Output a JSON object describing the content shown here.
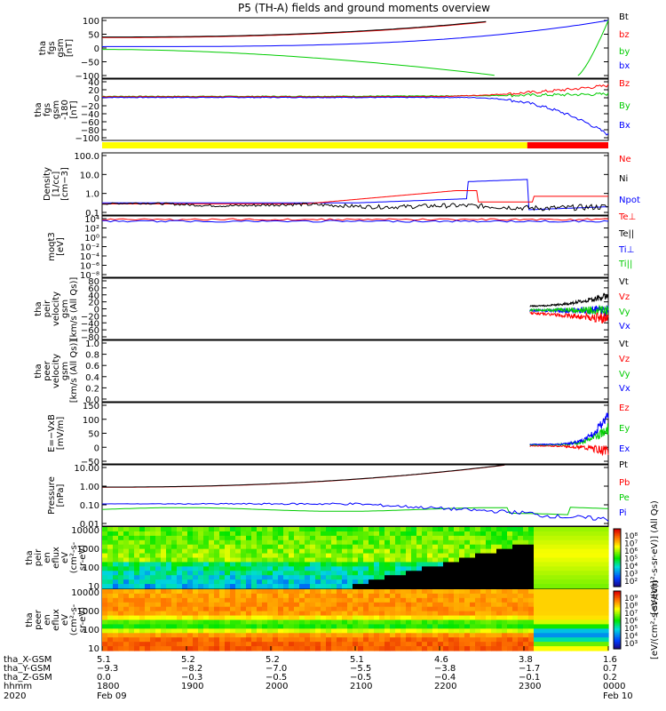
{
  "title": "P5 (TH-A) fields and ground moments overview",
  "colors": {
    "black": "#000000",
    "red": "#ff0000",
    "green": "#00cc00",
    "blue": "#0000ff",
    "bright_green": "#00ff00",
    "yellow": "#ffff00"
  },
  "chart_data": [
    {
      "panel": "fgs_gsm",
      "type": "line",
      "ylabel": [
        "tha",
        "fgs",
        "gsm",
        "[nT]"
      ],
      "yticks": [
        "100",
        "50",
        "0",
        "−50",
        "−100"
      ],
      "ylim": [
        -100,
        100
      ],
      "series": [
        {
          "name": "Bt",
          "color": "black"
        },
        {
          "name": "bz",
          "color": "red"
        },
        {
          "name": "by",
          "color": "green"
        },
        {
          "name": "bx",
          "color": "blue"
        }
      ]
    },
    {
      "panel": "fgs_gsm_clipped",
      "type": "line",
      "ylabel": [
        "tha",
        "fgs",
        "gsm",
        "-180",
        "[nT]"
      ],
      "yticks": [
        "40",
        "20",
        "0",
        "−20",
        "−40",
        "−60",
        "−80",
        "−100"
      ],
      "ylim": [
        -110,
        40
      ],
      "series": [
        {
          "name": "Bz",
          "color": "red"
        },
        {
          "name": "By",
          "color": "green"
        },
        {
          "name": "Bx",
          "color": "blue"
        }
      ]
    },
    {
      "panel": "density",
      "type": "line",
      "ylabel": [
        "Density",
        "[1/cc]",
        "[cm−3]"
      ],
      "yticks": [
        "100.0",
        "10.0",
        "1.0",
        "0.1"
      ],
      "yscale": "log",
      "series": [
        {
          "name": "Ne",
          "color": "red"
        },
        {
          "name": "Ni",
          "color": "black"
        },
        {
          "name": "Npot",
          "color": "blue"
        }
      ]
    },
    {
      "panel": "temperature",
      "type": "line",
      "ylabel": [
        "moqt3",
        "[eV]"
      ],
      "yticks": [
        "10⁴",
        "10²",
        "10⁰",
        "10⁻²",
        "10⁻⁴",
        "10⁻⁶",
        "10⁻⁸"
      ],
      "yscale": "log",
      "series": [
        {
          "name": "Te⊥",
          "color": "red"
        },
        {
          "name": "Te||",
          "color": "black"
        },
        {
          "name": "Ti⊥",
          "color": "blue"
        },
        {
          "name": "Ti||",
          "color": "green"
        }
      ]
    },
    {
      "panel": "peir_velocity",
      "type": "line",
      "ylabel": [
        "tha",
        "peir",
        "velocity",
        "gsm",
        "[km/s (All Qs)]"
      ],
      "yticks": [
        "80",
        "60",
        "40",
        "20",
        "0",
        "−20",
        "−40",
        "−60",
        "−80"
      ],
      "ylim": [
        -80,
        80
      ],
      "series": [
        {
          "name": "Vt",
          "color": "black"
        },
        {
          "name": "Vz",
          "color": "red"
        },
        {
          "name": "Vy",
          "color": "green"
        },
        {
          "name": "Vx",
          "color": "blue"
        }
      ]
    },
    {
      "panel": "peer_velocity",
      "type": "line",
      "ylabel": [
        "tha",
        "peer",
        "velocity",
        "gsm",
        "[km/s (All Qs)]"
      ],
      "yticks": [
        "1.0",
        "0.8",
        "0.6",
        "0.4",
        "0.2",
        "0.0"
      ],
      "ylim": [
        0,
        1
      ],
      "series": [
        {
          "name": "Vt",
          "color": "black"
        },
        {
          "name": "Vz",
          "color": "red"
        },
        {
          "name": "Vy",
          "color": "green"
        },
        {
          "name": "Vx",
          "color": "blue"
        }
      ]
    },
    {
      "panel": "efield",
      "type": "line",
      "ylabel": [
        "E=−VxB",
        "[mV/m]"
      ],
      "yticks": [
        "150",
        "100",
        "50",
        "0",
        "−50"
      ],
      "ylim": [
        -60,
        150
      ],
      "series": [
        {
          "name": "Ez",
          "color": "red"
        },
        {
          "name": "Ey",
          "color": "green"
        },
        {
          "name": "Ex",
          "color": "blue"
        }
      ]
    },
    {
      "panel": "pressure",
      "type": "line",
      "ylabel": [
        "Pressure",
        "[nPa]"
      ],
      "yticks": [
        "10.00",
        "1.00",
        "0.10",
        "0.01"
      ],
      "yscale": "log",
      "series": [
        {
          "name": "Pt",
          "color": "black"
        },
        {
          "name": "Pb",
          "color": "red"
        },
        {
          "name": "Pe",
          "color": "green"
        },
        {
          "name": "Pi",
          "color": "blue"
        }
      ]
    },
    {
      "panel": "peir_spectrogram",
      "type": "heatmap",
      "ylabel": [
        "tha",
        "peir",
        "en",
        "eflux",
        "eV",
        "(cm²-s-",
        "sr-eV)"
      ],
      "yticks": [
        "10000",
        "1000",
        "100",
        "10"
      ],
      "colorbar_label": "[eV/(cm²-s-sr-eV)] (All Qs)",
      "colorbar_ticks": [
        "10⁸",
        "10⁷",
        "10⁶",
        "10⁵",
        "10⁴",
        "10³",
        "10²"
      ]
    },
    {
      "panel": "peer_spectrogram",
      "type": "heatmap",
      "ylabel": [
        "tha",
        "peer",
        "en",
        "eflux",
        "eV",
        "(cm²-s-",
        "sr-eV)"
      ],
      "yticks": [
        "10000",
        "1000",
        "100",
        "10"
      ],
      "colorbar_label": "[eV/(cm²-s-sr-eV)]",
      "colorbar_ticks": [
        "10⁹",
        "10⁸",
        "10⁷",
        "10⁶",
        "10⁵",
        "10⁴",
        "10³"
      ]
    }
  ],
  "xaxis": {
    "row_labels": [
      "tha_X-GSM",
      "tha_Y-GSM",
      "tha_Z-GSM",
      "hhmm",
      "2020"
    ],
    "ticks": [
      {
        "x": "5.1",
        "y": "−9.3",
        "z": "0.0",
        "hhmm": "1800",
        "date": "Feb 09"
      },
      {
        "x": "5.2",
        "y": "−8.2",
        "z": "−0.3",
        "hhmm": "1900",
        "date": ""
      },
      {
        "x": "5.2",
        "y": "−7.0",
        "z": "−0.5",
        "hhmm": "2000",
        "date": ""
      },
      {
        "x": "5.1",
        "y": "−5.5",
        "z": "−0.5",
        "hhmm": "2100",
        "date": ""
      },
      {
        "x": "4.6",
        "y": "−3.8",
        "z": "−0.4",
        "hhmm": "2200",
        "date": ""
      },
      {
        "x": "3.8",
        "y": "−1.7",
        "z": "−0.1",
        "hhmm": "2300",
        "date": ""
      },
      {
        "x": "1.6",
        "y": "0.7",
        "z": "0.2",
        "hhmm": "0000",
        "date": "Feb 10"
      }
    ]
  }
}
